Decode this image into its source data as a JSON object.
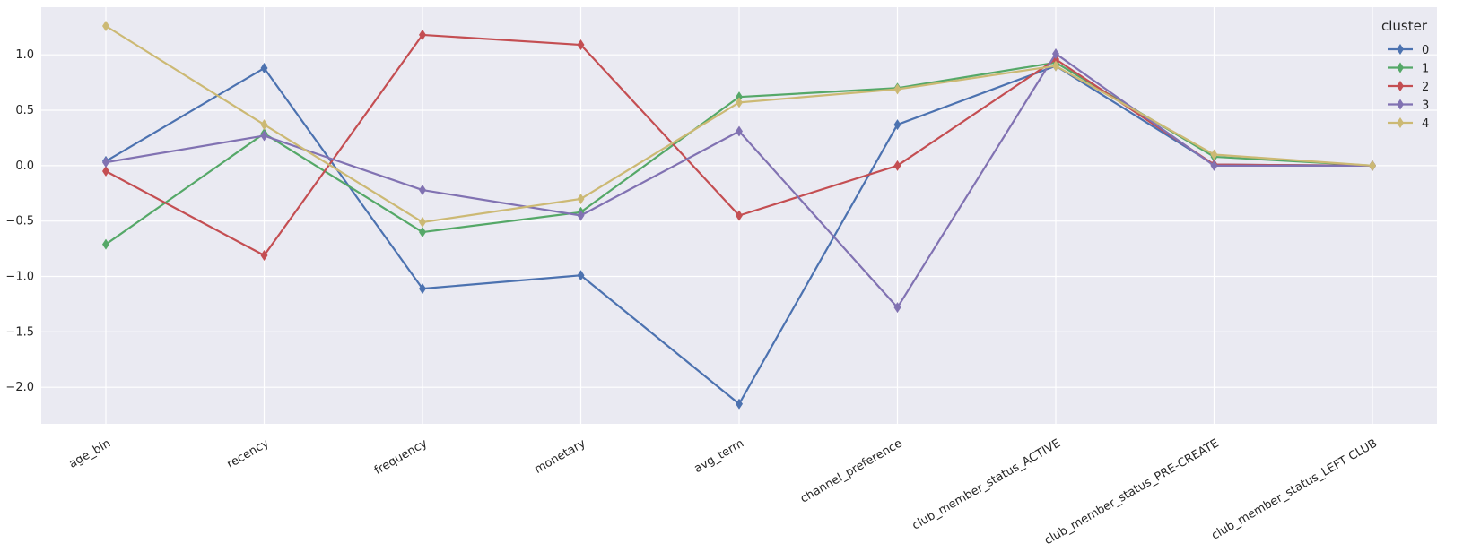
{
  "chart_data": {
    "type": "line",
    "title": "",
    "xlabel": "",
    "ylabel": "",
    "categories": [
      "age_bin",
      "recency",
      "frequency",
      "monetary",
      "avg_term",
      "channel_preference",
      "club_member_status_ACTIVE",
      "club_member_status_PRE-CREATE",
      "club_member_status_LEFT CLUB"
    ],
    "yticks": [
      {
        "value": 1.0,
        "label": "1.0"
      },
      {
        "value": 0.5,
        "label": "0.5"
      },
      {
        "value": 0.0,
        "label": "0.0"
      },
      {
        "value": -0.5,
        "label": "−0.5"
      },
      {
        "value": -1.0,
        "label": "−1.0"
      },
      {
        "value": -1.5,
        "label": "−1.5"
      },
      {
        "value": -2.0,
        "label": "−2.0"
      }
    ],
    "ylim": [
      -2.33,
      1.43
    ],
    "grid": true,
    "marker": "thin-diamond",
    "legend": {
      "title": "cluster",
      "position": "top-right"
    },
    "series": [
      {
        "name": "0",
        "color": "#4c72b0",
        "values": [
          0.04,
          0.88,
          -1.11,
          -0.99,
          -2.15,
          0.37,
          0.9,
          0.01,
          0.0
        ]
      },
      {
        "name": "1",
        "color": "#55a868",
        "values": [
          -0.71,
          0.29,
          -0.6,
          -0.42,
          0.62,
          0.7,
          0.93,
          0.08,
          0.0
        ]
      },
      {
        "name": "2",
        "color": "#c44e52",
        "values": [
          -0.05,
          -0.81,
          1.18,
          1.09,
          -0.45,
          0.0,
          0.96,
          0.01,
          0.0
        ]
      },
      {
        "name": "3",
        "color": "#8172b2",
        "values": [
          0.03,
          0.27,
          -0.22,
          -0.45,
          0.31,
          -1.28,
          1.01,
          0.0,
          0.0
        ]
      },
      {
        "name": "4",
        "color": "#ccb974",
        "values": [
          1.26,
          0.37,
          -0.51,
          -0.3,
          0.57,
          0.69,
          0.9,
          0.1,
          0.0
        ]
      }
    ]
  }
}
